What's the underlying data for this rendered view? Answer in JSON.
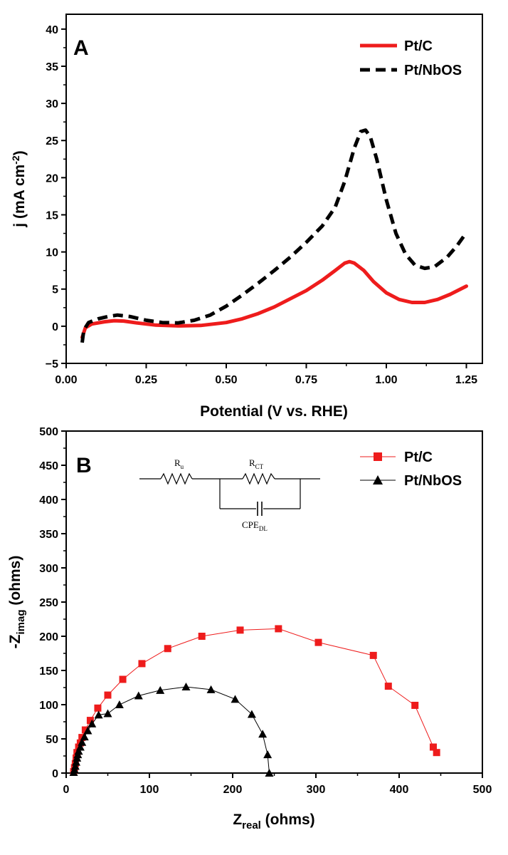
{
  "chart_data": [
    {
      "type": "line",
      "panel_label": "A",
      "xlabel": "Potential (V vs. RHE)",
      "ylabel_main": "j (mA cm",
      "ylabel_sup": "-2",
      "ylabel_close": ")",
      "xlim": [
        0.0,
        1.3
      ],
      "ylim": [
        -5,
        42
      ],
      "xticks": [
        0.0,
        0.25,
        0.5,
        0.75,
        1.0,
        1.25
      ],
      "xtick_labels": [
        "0.00",
        "0.25",
        "0.50",
        "0.75",
        "1.00",
        "1.25"
      ],
      "yticks": [
        -5,
        0,
        5,
        10,
        15,
        20,
        25,
        30,
        35,
        40
      ],
      "ytick_labels": [
        "−5",
        "0",
        "5",
        "10",
        "15",
        "20",
        "25",
        "30",
        "35",
        "40"
      ],
      "legend_position": "top-right",
      "series": [
        {
          "name": "Pt/C",
          "color": "#ee1c1c",
          "style": "solid",
          "points": [
            [
              0.05,
              -1.5
            ],
            [
              0.06,
              -0.2
            ],
            [
              0.08,
              0.3
            ],
            [
              0.12,
              0.6
            ],
            [
              0.15,
              0.75
            ],
            [
              0.18,
              0.7
            ],
            [
              0.22,
              0.45
            ],
            [
              0.28,
              0.15
            ],
            [
              0.35,
              0.05
            ],
            [
              0.42,
              0.1
            ],
            [
              0.5,
              0.5
            ],
            [
              0.55,
              1.0
            ],
            [
              0.6,
              1.7
            ],
            [
              0.65,
              2.6
            ],
            [
              0.7,
              3.7
            ],
            [
              0.75,
              4.8
            ],
            [
              0.8,
              6.2
            ],
            [
              0.84,
              7.5
            ],
            [
              0.87,
              8.5
            ],
            [
              0.885,
              8.7
            ],
            [
              0.9,
              8.5
            ],
            [
              0.93,
              7.5
            ],
            [
              0.96,
              6.0
            ],
            [
              1.0,
              4.5
            ],
            [
              1.04,
              3.6
            ],
            [
              1.08,
              3.2
            ],
            [
              1.12,
              3.2
            ],
            [
              1.16,
              3.6
            ],
            [
              1.2,
              4.3
            ],
            [
              1.25,
              5.4
            ]
          ]
        },
        {
          "name": "Pt/NbOS",
          "color": "#000000",
          "style": "dashed",
          "points": [
            [
              0.05,
              -2.2
            ],
            [
              0.055,
              -0.5
            ],
            [
              0.07,
              0.5
            ],
            [
              0.1,
              1.0
            ],
            [
              0.13,
              1.3
            ],
            [
              0.16,
              1.5
            ],
            [
              0.2,
              1.3
            ],
            [
              0.25,
              0.8
            ],
            [
              0.3,
              0.5
            ],
            [
              0.35,
              0.45
            ],
            [
              0.4,
              0.8
            ],
            [
              0.45,
              1.5
            ],
            [
              0.5,
              2.7
            ],
            [
              0.55,
              4.2
            ],
            [
              0.6,
              5.8
            ],
            [
              0.65,
              7.5
            ],
            [
              0.7,
              9.3
            ],
            [
              0.75,
              11.3
            ],
            [
              0.8,
              13.5
            ],
            [
              0.84,
              16.0
            ],
            [
              0.87,
              19.5
            ],
            [
              0.9,
              24.0
            ],
            [
              0.92,
              26.2
            ],
            [
              0.935,
              26.4
            ],
            [
              0.95,
              25.5
            ],
            [
              0.97,
              22.5
            ],
            [
              1.0,
              17.0
            ],
            [
              1.03,
              12.5
            ],
            [
              1.06,
              9.7
            ],
            [
              1.09,
              8.2
            ],
            [
              1.12,
              7.8
            ],
            [
              1.15,
              8.0
            ],
            [
              1.19,
              9.3
            ],
            [
              1.22,
              10.8
            ],
            [
              1.25,
              12.6
            ]
          ]
        }
      ]
    },
    {
      "type": "scatter",
      "panel_label": "B",
      "xlabel_main": "Z",
      "xlabel_sub": "real",
      "xlabel_close": " (ohms)",
      "ylabel_main": "-Z",
      "ylabel_sub": "imag",
      "ylabel_close": " (ohms)",
      "xlim": [
        0,
        500
      ],
      "ylim": [
        0,
        500
      ],
      "xticks": [
        0,
        100,
        200,
        300,
        400,
        500
      ],
      "xtick_labels": [
        "0",
        "100",
        "200",
        "300",
        "400",
        "500"
      ],
      "yticks": [
        0,
        50,
        100,
        150,
        200,
        250,
        300,
        350,
        400,
        450,
        500
      ],
      "ytick_labels": [
        "0",
        "50",
        "100",
        "150",
        "200",
        "250",
        "300",
        "350",
        "400",
        "450",
        "500"
      ],
      "legend_position": "top-right",
      "series": [
        {
          "name": "Pt/C",
          "color": "#ee1c1c",
          "marker": "square",
          "points": [
            [
              9,
              2
            ],
            [
              10,
              8
            ],
            [
              11,
              14
            ],
            [
              12,
              22
            ],
            [
              13,
              30
            ],
            [
              15,
              38
            ],
            [
              17,
              44
            ],
            [
              19,
              52
            ],
            [
              23,
              63
            ],
            [
              29,
              77
            ],
            [
              38,
              95
            ],
            [
              50,
              114
            ],
            [
              68,
              137
            ],
            [
              91,
              160
            ],
            [
              122,
              182
            ],
            [
              163,
              200
            ],
            [
              209,
              209
            ],
            [
              255,
              211
            ],
            [
              303,
              191
            ],
            [
              369,
              172
            ],
            [
              387,
              127
            ],
            [
              419,
              99
            ],
            [
              441,
              38
            ],
            [
              445,
              30
            ]
          ]
        },
        {
          "name": "Pt/NbOS",
          "color": "#000000",
          "marker": "triangle",
          "points": [
            [
              9,
              1
            ],
            [
              10,
              5
            ],
            [
              11,
              10
            ],
            [
              12,
              16
            ],
            [
              13,
              22
            ],
            [
              14,
              27
            ],
            [
              15,
              32
            ],
            [
              17,
              38
            ],
            [
              19,
              45
            ],
            [
              22,
              53
            ],
            [
              26,
              62
            ],
            [
              31,
              72
            ],
            [
              39,
              85
            ],
            [
              50,
              87
            ],
            [
              64,
              100
            ],
            [
              87,
              113
            ],
            [
              113,
              121
            ],
            [
              144,
              126
            ],
            [
              174,
              122
            ],
            [
              203,
              108
            ],
            [
              223,
              86
            ],
            [
              236,
              57
            ],
            [
              242,
              27
            ],
            [
              244,
              0
            ]
          ]
        }
      ],
      "circuit": {
        "r_u_main": "R",
        "r_u_sub": "u",
        "r_ct_main": "R",
        "r_ct_sub": "CT",
        "cpe_main": "CPE",
        "cpe_sub": "DL"
      }
    }
  ]
}
